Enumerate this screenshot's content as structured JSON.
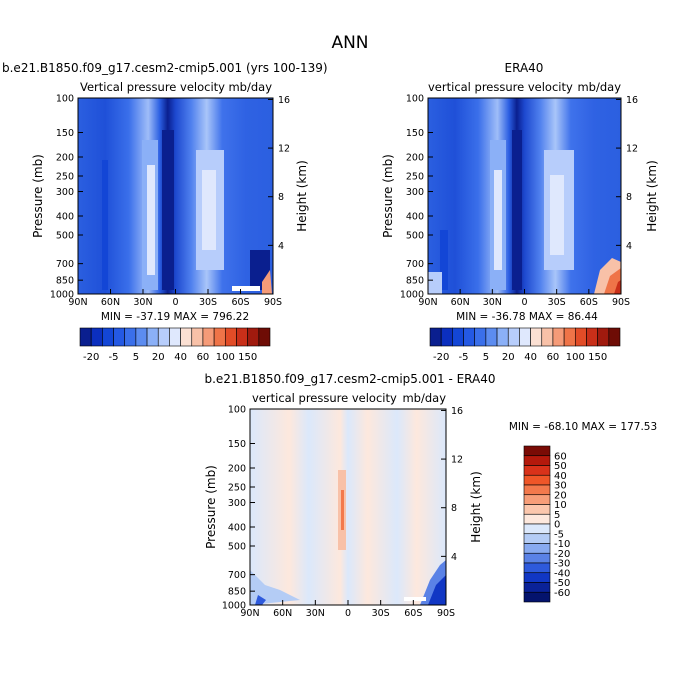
{
  "title": "ANN",
  "panels": [
    {
      "id": "model",
      "header": "b.e21.B1850.f09_g17.cesm2-cmip5.001 (yrs 100-139)",
      "variable": "Vertical pressure velocity",
      "units": "mb/day",
      "ylabel": "Pressure (mb)",
      "y2label": "Height (km)",
      "stats": "MIN = -37.19   MAX = 796.22"
    },
    {
      "id": "obs",
      "header": "ERA40",
      "variable": "vertical pressure velocity",
      "units": "mb/day",
      "ylabel": "Pressure (mb)",
      "y2label": "Height (km)",
      "stats": "MIN = -36.78   MAX = 86.44"
    },
    {
      "id": "diff",
      "header": "b.e21.B1850.f09_g17.cesm2-cmip5.001 - ERA40",
      "variable": "vertical pressure velocity",
      "units": "mb/day",
      "ylabel": "Pressure (mb)",
      "y2label": "Height (km)",
      "stats": "MIN = -68.10   MAX = 177.53"
    }
  ],
  "chart_data": {
    "type": "heatmap",
    "x_ticks": [
      "90N",
      "60N",
      "30N",
      "0",
      "30S",
      "60S",
      "90S"
    ],
    "p_ticks": [
      "100",
      "150",
      "200",
      "250",
      "300",
      "400",
      "500",
      "700",
      "850",
      "1000"
    ],
    "p_values": [
      100,
      150,
      200,
      250,
      300,
      400,
      500,
      700,
      850,
      1000
    ],
    "km_ticks": [
      "16",
      "12",
      "8",
      "4"
    ],
    "km_values": [
      16,
      12,
      8,
      4
    ],
    "colorbar_main": {
      "labels": [
        "-20",
        "-5",
        "5",
        "20",
        "40",
        "60",
        "100",
        "150"
      ],
      "colors": [
        "#0a1f8f",
        "#0b2fbf",
        "#1346d6",
        "#2459e3",
        "#3a6fea",
        "#5c8cf0",
        "#8bb0f7",
        "#b7cdfb",
        "#dfe8fd",
        "#fbe0d3",
        "#f8c1a8",
        "#f59b78",
        "#ef7448",
        "#e24c27",
        "#c92f19",
        "#a01a0e",
        "#6e0c05"
      ]
    },
    "colorbar_diff": {
      "labels": [
        "60",
        "50",
        "40",
        "30",
        "20",
        "10",
        "5",
        "0",
        "-5",
        "-10",
        "-20",
        "-30",
        "-40",
        "-50",
        "-60"
      ],
      "colors": [
        "#7a0b05",
        "#b4190c",
        "#d9321a",
        "#ef5628",
        "#f3794c",
        "#f79e79",
        "#fbc7ad",
        "#fde8dd",
        "#dbe8fb",
        "#b4ccf5",
        "#88aaf0",
        "#5a82e6",
        "#2e5adc",
        "#1137c4",
        "#0a2298",
        "#04136d"
      ]
    }
  }
}
